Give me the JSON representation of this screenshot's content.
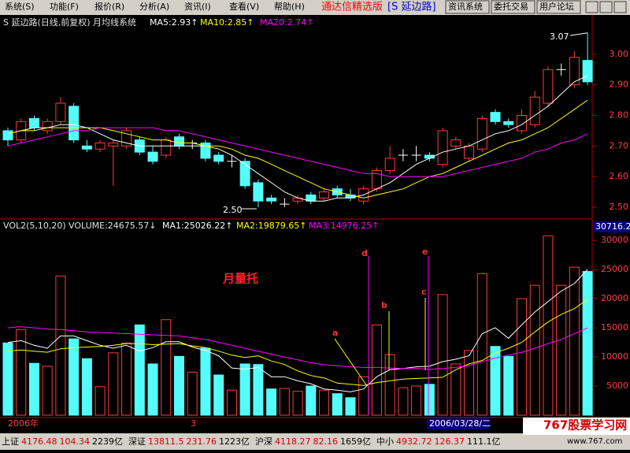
{
  "menu": {
    "items": [
      "系统(S)",
      "功能(F)",
      "报价(R)",
      "分析(A)",
      "资讯(I)",
      "查看(V)",
      "帮助(H)"
    ],
    "brand": "通达信精选版",
    "stock": "[S 延边路]",
    "buttons": [
      "资讯系统",
      "委托交易",
      "用户论坛"
    ]
  },
  "chart_data": [
    {
      "type": "candlestick",
      "title": "S 延边路(日线,前复权) 月均线系统",
      "open": [
        2.75,
        2.72,
        2.79,
        2.75,
        2.78,
        2.83,
        2.7,
        2.69,
        2.7,
        2.7,
        2.72,
        2.68,
        2.67,
        2.73,
        2.71,
        2.71,
        2.67,
        2.65,
        2.65,
        2.58,
        2.53,
        2.51,
        2.52,
        2.54,
        2.53,
        2.56,
        2.54,
        2.52,
        2.56,
        2.62,
        2.67,
        2.67,
        2.67,
        2.64,
        2.7,
        2.66,
        2.69,
        2.81,
        2.78,
        2.75,
        2.77,
        2.84,
        2.95,
        2.9,
        2.98
      ],
      "high": [
        2.76,
        2.79,
        2.8,
        2.79,
        2.86,
        2.84,
        2.72,
        2.72,
        2.72,
        2.76,
        2.73,
        2.7,
        2.73,
        2.74,
        2.72,
        2.72,
        2.68,
        2.67,
        2.66,
        2.59,
        2.54,
        2.53,
        2.54,
        2.55,
        2.56,
        2.57,
        2.56,
        2.57,
        2.63,
        2.7,
        2.69,
        2.7,
        2.68,
        2.76,
        2.73,
        2.71,
        2.8,
        2.82,
        2.79,
        2.82,
        2.88,
        2.96,
        2.97,
        3.01,
        3.07
      ],
      "low": [
        2.7,
        2.71,
        2.75,
        2.74,
        2.77,
        2.71,
        2.68,
        2.68,
        2.57,
        2.69,
        2.67,
        2.64,
        2.66,
        2.69,
        2.69,
        2.65,
        2.64,
        2.63,
        2.56,
        2.5,
        2.51,
        2.5,
        2.51,
        2.51,
        2.52,
        2.53,
        2.52,
        2.51,
        2.55,
        2.61,
        2.65,
        2.65,
        2.65,
        2.63,
        2.69,
        2.65,
        2.68,
        2.77,
        2.76,
        2.74,
        2.76,
        2.83,
        2.93,
        2.89,
        2.9
      ],
      "close": [
        2.72,
        2.78,
        2.76,
        2.78,
        2.84,
        2.72,
        2.69,
        2.71,
        2.71,
        2.75,
        2.68,
        2.65,
        2.72,
        2.7,
        2.71,
        2.66,
        2.65,
        2.65,
        2.57,
        2.52,
        2.52,
        2.51,
        2.53,
        2.52,
        2.55,
        2.54,
        2.53,
        2.56,
        2.62,
        2.66,
        2.67,
        2.67,
        2.66,
        2.75,
        2.72,
        2.7,
        2.79,
        2.78,
        2.77,
        2.8,
        2.86,
        2.95,
        2.95,
        2.99,
        2.91
      ],
      "up_color": "#ff3c3c",
      "down_color": "#54fcfc",
      "flat_color": "#ffffff",
      "series": [
        {
          "name": "MA5:2.93↑",
          "color": "#ffffff",
          "values": [
            2.74,
            2.75,
            2.76,
            2.76,
            2.77,
            2.77,
            2.76,
            2.74,
            2.72,
            2.71,
            2.7,
            2.7,
            2.7,
            2.7,
            2.7,
            2.7,
            2.69,
            2.67,
            2.64,
            2.61,
            2.58,
            2.55,
            2.53,
            2.52,
            2.52,
            2.53,
            2.53,
            2.54,
            2.56,
            2.58,
            2.61,
            2.64,
            2.66,
            2.68,
            2.69,
            2.7,
            2.72,
            2.74,
            2.75,
            2.77,
            2.8,
            2.83,
            2.87,
            2.91,
            2.93
          ]
        },
        {
          "name": "MA10:2.85↑",
          "color": "#ffff00",
          "values": [
            2.74,
            2.75,
            2.75,
            2.76,
            2.76,
            2.76,
            2.76,
            2.76,
            2.75,
            2.74,
            2.73,
            2.72,
            2.72,
            2.71,
            2.71,
            2.7,
            2.7,
            2.69,
            2.67,
            2.66,
            2.64,
            2.62,
            2.6,
            2.58,
            2.56,
            2.55,
            2.54,
            2.53,
            2.54,
            2.55,
            2.56,
            2.58,
            2.6,
            2.61,
            2.63,
            2.65,
            2.67,
            2.69,
            2.71,
            2.72,
            2.74,
            2.76,
            2.79,
            2.82,
            2.85
          ]
        },
        {
          "name": "MA20:2.74↑",
          "color": "#ff00ff",
          "values": [
            2.7,
            2.71,
            2.72,
            2.73,
            2.74,
            2.75,
            2.75,
            2.76,
            2.76,
            2.76,
            2.76,
            2.76,
            2.75,
            2.75,
            2.74,
            2.73,
            2.72,
            2.71,
            2.7,
            2.69,
            2.68,
            2.67,
            2.66,
            2.65,
            2.64,
            2.63,
            2.62,
            2.61,
            2.61,
            2.6,
            2.6,
            2.6,
            2.6,
            2.6,
            2.61,
            2.62,
            2.63,
            2.64,
            2.65,
            2.66,
            2.68,
            2.69,
            2.71,
            2.72,
            2.74
          ]
        }
      ],
      "ylim": [
        2.469,
        3.126
      ],
      "yticks": [
        {
          "value": 2.5,
          "label": "2.50"
        },
        {
          "value": 2.6,
          "label": "2.60"
        },
        {
          "value": 2.7,
          "label": "2.70"
        },
        {
          "value": 2.8,
          "label": "2.80"
        },
        {
          "value": 2.9,
          "label": "2.90"
        },
        {
          "value": 3.0,
          "label": "3.00"
        }
      ],
      "annotations": [
        {
          "text": "3.07",
          "value": 3.07
        },
        {
          "text": "2.50",
          "value": 2.5
        }
      ]
    },
    {
      "type": "bar",
      "title": "VOL2(5,10,20)",
      "series": [
        {
          "name": "VOLUME:24675.57↓",
          "values": [
            12400,
            14700,
            8900,
            8400,
            23900,
            13100,
            9700,
            4900,
            10700,
            12400,
            15500,
            8800,
            16400,
            10100,
            7400,
            11500,
            6900,
            4300,
            8800,
            8700,
            4500,
            4600,
            4100,
            5000,
            4300,
            3700,
            3000,
            6600,
            15500,
            10400,
            4700,
            5000,
            5300,
            20700,
            8800,
            11100,
            24300,
            11800,
            10100,
            20000,
            22300,
            30800,
            22300,
            25400,
            24675.57
          ]
        },
        {
          "name": "MA1:25026.22↑",
          "color": "#ffffff",
          "values": [
            12500,
            12800,
            12000,
            11500,
            13600,
            13600,
            12800,
            12000,
            11500,
            12000,
            11000,
            11600,
            12600,
            12600,
            11700,
            11100,
            10200,
            8100,
            7900,
            8200,
            6600,
            6600,
            5900,
            5400,
            4500,
            4300,
            4000,
            4500,
            6600,
            7800,
            8000,
            8300,
            8400,
            9200,
            9600,
            10200,
            14000,
            15000,
            13200,
            15500,
            17700,
            19500,
            21300,
            22600,
            25026.22
          ]
        },
        {
          "name": "MA2:19879.65↑",
          "color": "#ffff00",
          "values": [
            11000,
            11200,
            11000,
            10800,
            11400,
            11600,
            11700,
            11800,
            12000,
            12300,
            12300,
            12100,
            12200,
            12300,
            11900,
            11600,
            11000,
            10300,
            9900,
            10200,
            9300,
            8700,
            7600,
            6800,
            6400,
            5500,
            5300,
            5100,
            5600,
            5900,
            6200,
            6300,
            6400,
            6500,
            7800,
            8800,
            9400,
            10700,
            11500,
            12500,
            14300,
            16000,
            17300,
            18300,
            19879.65
          ]
        },
        {
          "name": "MA3:14976.25↑",
          "color": "#ff00ff",
          "values": [
            15000,
            15200,
            15000,
            14800,
            14700,
            14500,
            14300,
            14200,
            14100,
            14000,
            13900,
            13800,
            13700,
            13600,
            13300,
            13000,
            12500,
            12000,
            11500,
            11000,
            10500,
            10000,
            9500,
            9000,
            8700,
            8500,
            8300,
            8200,
            8200,
            8100,
            8000,
            8000,
            7900,
            8000,
            8200,
            8500,
            9200,
            9800,
            10300,
            10800,
            11500,
            12300,
            13000,
            14000,
            14976.25
          ]
        }
      ],
      "ylim": [
        0,
        33000
      ],
      "yticks": [
        5000,
        10000,
        15000,
        20000,
        25000,
        30000
      ],
      "cursor_label": "30716.2",
      "note": "月量托",
      "markers": [
        "a",
        "b",
        "c",
        "d",
        "e"
      ]
    }
  ],
  "time_axis": {
    "labels": [
      "2006年",
      "3"
    ],
    "cursor_date": "2006/03/28/二"
  },
  "status_bar": [
    {
      "name": "上证",
      "price": "4176.48",
      "change": "104.34",
      "amount": "2239亿"
    },
    {
      "name": "深证",
      "price": "13811.5",
      "change": "231.76",
      "amount": "1223亿"
    },
    {
      "name": "沪深",
      "price": "4118.27",
      "change": "82.16",
      "amount": "1659亿"
    },
    {
      "name": "中小",
      "price": "4932.72",
      "change": "126.37",
      "amount": "111.1亿"
    }
  ],
  "watermark": {
    "title": "767股票学习网",
    "url": "www.767.com"
  }
}
